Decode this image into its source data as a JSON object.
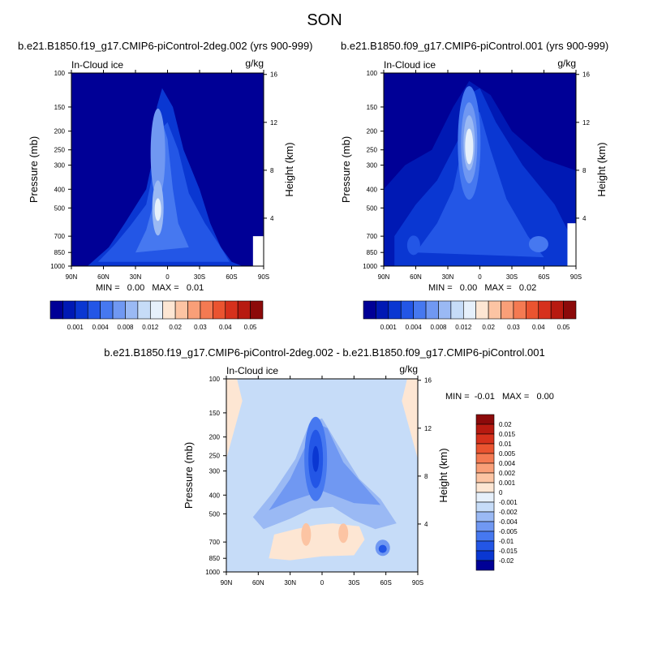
{
  "page": {
    "suptitle": "SON"
  },
  "panels": [
    {
      "id": "top-left",
      "title": "b.e21.B1850.f19_g17.CMIP6-piControl-2deg.002 (yrs 900-999)",
      "variable_label": "In-Cloud ice",
      "units": "g/kg",
      "ylabel_left": "Pressure (mb)",
      "ylabel_right": "Height (km)",
      "minmax": "MIN =   0.00   MAX =   0.01"
    },
    {
      "id": "top-right",
      "title": "b.e21.B1850.f09_g17.CMIP6-piControl.001 (yrs 900-999)",
      "variable_label": "In-Cloud ice",
      "units": "g/kg",
      "ylabel_left": "Pressure (mb)",
      "ylabel_right": "Height (km)",
      "minmax": "MIN =   0.00   MAX =   0.02"
    },
    {
      "id": "bottom-diff",
      "title": "b.e21.B1850.f19_g17.CMIP6-piControl-2deg.002 - b.e21.B1850.f09_g17.CMIP6-piControl.001",
      "variable_label": "In-Cloud ice",
      "units": "g/kg",
      "ylabel_left": "Pressure (mb)",
      "ylabel_right": "Height (km)",
      "minmax": "MIN =  -0.01   MAX =   0.00"
    }
  ],
  "axes": {
    "x_ticks": [
      "90N",
      "60N",
      "30N",
      "0",
      "30S",
      "60S",
      "90S"
    ],
    "x_values": [
      90,
      60,
      30,
      0,
      -30,
      -60,
      -90
    ],
    "pressure_ticks": [
      100,
      150,
      200,
      250,
      300,
      400,
      500,
      700,
      850,
      1000
    ],
    "pressure_range": [
      100,
      1000
    ],
    "height_ticks": [
      4,
      8,
      12,
      16
    ],
    "y_scale": "log-pressure"
  },
  "colorbars": {
    "sequential": {
      "colors": [
        "#000096",
        "#0019b4",
        "#0a37d2",
        "#2356e6",
        "#4678f0",
        "#7098f2",
        "#9ab9f4",
        "#c6dcf8",
        "#e6f0fb",
        "#fde6d3",
        "#fcc4a3",
        "#f99f78",
        "#f47a52",
        "#ea5430",
        "#d6311c",
        "#b71a10",
        "#8c0a0a"
      ],
      "tick_labels": [
        "0.001",
        "0.004",
        "0.008",
        "0.012",
        "0.02",
        "0.03",
        "0.04",
        "0.05"
      ]
    },
    "difference": {
      "colors": [
        "#8c0a0a",
        "#b71a10",
        "#d6311c",
        "#ea5430",
        "#f47a52",
        "#f99f78",
        "#fcc4a3",
        "#fde6d3",
        "#e6f0fb",
        "#c6dcf8",
        "#9ab9f4",
        "#7098f2",
        "#4678f0",
        "#2356e6",
        "#0a37d2",
        "#000096"
      ],
      "tick_labels": [
        "0.02",
        "0.015",
        "0.01",
        "0.005",
        "0.004",
        "0.002",
        "0.001",
        "0",
        "-0.001",
        "-0.002",
        "-0.004",
        "-0.005",
        "-0.01",
        "-0.015",
        "-0.02"
      ]
    }
  },
  "chart_data": [
    {
      "type": "heatmap",
      "title": "b.e21.B1850.f19_g17.CMIP6-piControl-2deg.002 (yrs 900-999)",
      "xlabel": "",
      "ylabel": "Pressure (mb)",
      "y2label": "Height (km)",
      "xlim": [
        90,
        -90
      ],
      "ylim": [
        1000,
        100
      ],
      "min": 0.0,
      "max": 0.01,
      "features": [
        {
          "desc": "tropical column maximum",
          "lat": 8,
          "pressure": 500,
          "value": 0.01
        },
        {
          "desc": "tropical upper column",
          "lat": 5,
          "pressure": 200,
          "value": 0.005
        }
      ]
    },
    {
      "type": "heatmap",
      "title": "b.e21.B1850.f09_g17.CMIP6-piControl.001 (yrs 900-999)",
      "xlabel": "",
      "ylabel": "Pressure (mb)",
      "y2label": "Height (km)",
      "xlim": [
        90,
        -90
      ],
      "ylim": [
        1000,
        100
      ],
      "min": 0.0,
      "max": 0.02,
      "features": [
        {
          "desc": "tropical upper maximum",
          "lat": 8,
          "pressure": 250,
          "value": 0.02
        },
        {
          "desc": "southern mid-latitude lower",
          "lat": -55,
          "pressure": 750,
          "value": 0.004
        },
        {
          "desc": "northern mid-latitude lower",
          "lat": 60,
          "pressure": 750,
          "value": 0.002
        }
      ]
    },
    {
      "type": "heatmap",
      "title": "b.e21.B1850.f19_g17.CMIP6-piControl-2deg.002 - b.e21.B1850.f09_g17.CMIP6-piControl.001",
      "xlabel": "",
      "ylabel": "Pressure (mb)",
      "y2label": "Height (km)",
      "xlim": [
        90,
        -90
      ],
      "ylim": [
        1000,
        100
      ],
      "min": -0.01,
      "max": 0.0,
      "features": [
        {
          "desc": "tropical upper minimum",
          "lat": 10,
          "pressure": 250,
          "value": -0.01
        },
        {
          "desc": "lower tropics positive",
          "lat": 0,
          "pressure": 600,
          "value": 0.002
        },
        {
          "desc": "southern mid-latitude negative",
          "lat": -55,
          "pressure": 750,
          "value": -0.005
        }
      ]
    }
  ]
}
